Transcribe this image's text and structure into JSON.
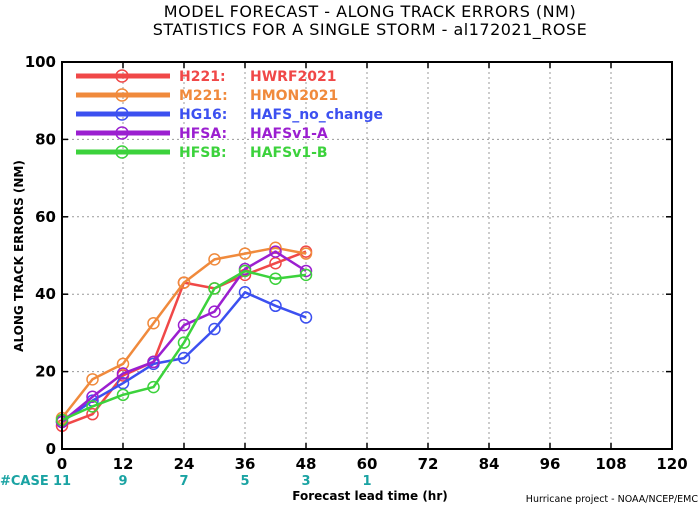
{
  "title_line1": "MODEL FORECAST - ALONG TRACK ERRORS (NM)",
  "title_line2": "STATISTICS FOR A SINGLE STORM - al172021_ROSE",
  "credit": "Hurricane project - NOAA/NCEP/EMC",
  "case_label": "#CASE",
  "cases": [
    {
      "x": 0,
      "n": "11"
    },
    {
      "x": 12,
      "n": "9"
    },
    {
      "x": 24,
      "n": "7"
    },
    {
      "x": 36,
      "n": "5"
    },
    {
      "x": 48,
      "n": "3"
    },
    {
      "x": 60,
      "n": "1"
    }
  ],
  "chart_data": {
    "type": "line",
    "xlabel": "Forecast lead time (hr)",
    "ylabel": "ALONG TRACK ERRORS (NM)",
    "xlim": [
      0,
      120
    ],
    "ylim": [
      0,
      100
    ],
    "xticks": [
      0,
      12,
      24,
      36,
      48,
      60,
      72,
      84,
      96,
      108,
      120
    ],
    "yticks": [
      0,
      20,
      40,
      60,
      80,
      100
    ],
    "grid": true,
    "legend_position": "top-left",
    "series": [
      {
        "name": "H221:",
        "desc": "HWRF2021",
        "color": "#f04848",
        "x": [
          0,
          6,
          12,
          18,
          24,
          30,
          36,
          42,
          48
        ],
        "y": [
          6,
          9,
          19,
          22.5,
          43,
          41.5,
          45,
          48,
          51
        ]
      },
      {
        "name": "M221:",
        "desc": "HMON2021",
        "color": "#f08a3c",
        "x": [
          0,
          6,
          12,
          18,
          24,
          30,
          36,
          42,
          48
        ],
        "y": [
          8,
          18,
          22,
          32.5,
          43,
          49,
          50.5,
          52,
          50.5
        ]
      },
      {
        "name": "HG16:",
        "desc": "HAFS_no_change",
        "color": "#3c50f0",
        "x": [
          0,
          6,
          12,
          18,
          24,
          30,
          36,
          42,
          48
        ],
        "y": [
          7,
          12.5,
          17,
          22,
          23.5,
          31,
          40.5,
          37,
          34
        ]
      },
      {
        "name": "HFSA:",
        "desc": "HAFSv1-A",
        "color": "#9b1fd0",
        "x": [
          0,
          6,
          12,
          18,
          24,
          30,
          36,
          42,
          48
        ],
        "y": [
          7,
          13.5,
          19.5,
          22.5,
          32,
          35.5,
          46.5,
          51,
          46
        ]
      },
      {
        "name": "HFSB:",
        "desc": "HAFSv1-B",
        "color": "#3cd23c",
        "x": [
          0,
          6,
          12,
          18,
          24,
          30,
          36,
          42,
          48
        ],
        "y": [
          7.5,
          11,
          14,
          16,
          27.5,
          41.5,
          46,
          44,
          45
        ]
      }
    ]
  }
}
